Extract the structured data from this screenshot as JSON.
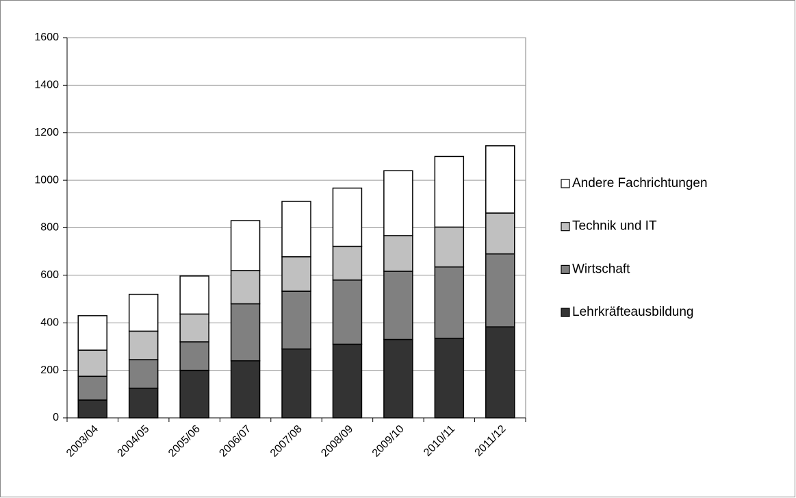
{
  "chart_data": {
    "type": "stacked-bar",
    "categories": [
      "2003/04",
      "2004/05",
      "2005/06",
      "2006/07",
      "2007/08",
      "2008/09",
      "2009/10",
      "2010/11",
      "2011/12"
    ],
    "series": [
      {
        "name": "Lehrkräfteausbildung",
        "color": "#333333",
        "values": [
          75,
          125,
          200,
          240,
          290,
          310,
          330,
          335,
          383
        ]
      },
      {
        "name": "Wirtschaft",
        "color": "#808080",
        "values": [
          100,
          120,
          120,
          240,
          243,
          270,
          287,
          300,
          307
        ]
      },
      {
        "name": "Technik und IT",
        "color": "#c0c0c0",
        "values": [
          110,
          120,
          117,
          140,
          145,
          142,
          150,
          168,
          172
        ]
      },
      {
        "name": "Andere Fachrichtungen",
        "color": "#ffffff",
        "values": [
          145,
          155,
          160,
          210,
          233,
          245,
          273,
          297,
          283
        ]
      }
    ],
    "ylim": [
      0,
      1600
    ],
    "yticks": [
      0,
      200,
      400,
      600,
      800,
      1000,
      1200,
      1400,
      1600
    ],
    "grid": true,
    "legend": "right"
  }
}
